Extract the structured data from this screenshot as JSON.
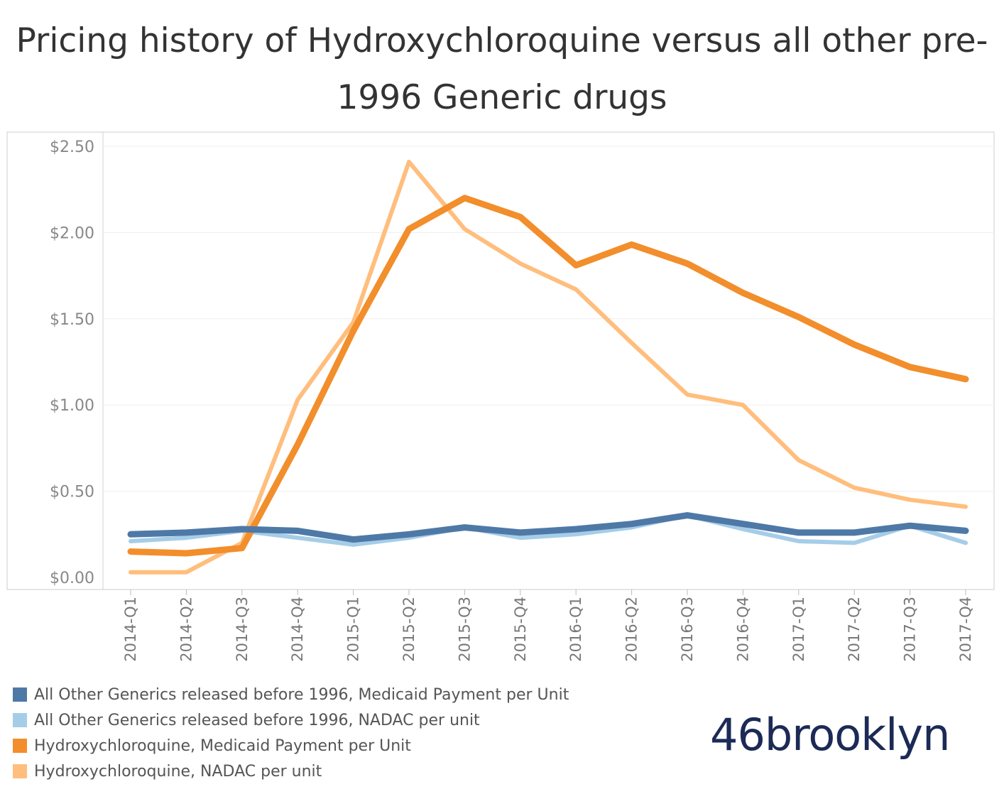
{
  "chart_data": {
    "type": "line",
    "title": "Pricing history of Hydroxychloroquine versus all other pre-1996 Generic drugs",
    "categories": [
      "2014-Q1",
      "2014-Q2",
      "2014-Q3",
      "2014-Q4",
      "2015-Q1",
      "2015-Q2",
      "2015-Q3",
      "2015-Q4",
      "2016-Q1",
      "2016-Q2",
      "2016-Q3",
      "2016-Q4",
      "2017-Q1",
      "2017-Q2",
      "2017-Q3",
      "2017-Q4"
    ],
    "ylim": [
      0,
      2.5
    ],
    "yticks": [
      "$0.00",
      "$0.50",
      "$1.00",
      "$1.50",
      "$2.00",
      "$2.50"
    ],
    "ytick_values": [
      0,
      0.5,
      1.0,
      1.5,
      2.0,
      2.5
    ],
    "grid": true,
    "legend_position": "bottom-left",
    "series": [
      {
        "name": "All Other Generics released before 1996, NADAC per unit",
        "color": "#a5cde8",
        "values": [
          0.21,
          0.23,
          0.27,
          0.23,
          0.19,
          0.23,
          0.29,
          0.23,
          0.25,
          0.29,
          0.36,
          0.28,
          0.21,
          0.2,
          0.3,
          0.2
        ]
      },
      {
        "name": "Hydroxychloroquine, NADAC per unit",
        "color": "#ffbe7d",
        "values": [
          0.03,
          0.03,
          0.2,
          1.03,
          1.48,
          2.41,
          2.02,
          1.82,
          1.67,
          1.36,
          1.06,
          1.0,
          0.68,
          0.52,
          0.45,
          0.41
        ]
      },
      {
        "name": "Hydroxychloroquine, Medicaid Payment per Unit",
        "color": "#f28e2b",
        "values": [
          0.15,
          0.14,
          0.17,
          0.77,
          1.43,
          2.02,
          2.2,
          2.09,
          1.81,
          1.93,
          1.82,
          1.65,
          1.51,
          1.35,
          1.22,
          1.15
        ]
      },
      {
        "name": "All Other Generics released before 1996, Medicaid Payment per Unit",
        "color": "#4e79a7",
        "values": [
          0.25,
          0.26,
          0.28,
          0.27,
          0.22,
          0.25,
          0.29,
          0.26,
          0.28,
          0.31,
          0.36,
          0.31,
          0.26,
          0.26,
          0.3,
          0.27
        ]
      }
    ]
  },
  "legend": [
    {
      "label": "All Other Generics released before 1996, Medicaid Payment per Unit",
      "color": "#4e79a7"
    },
    {
      "label": "All Other Generics released before 1996, NADAC per unit",
      "color": "#a5cde8"
    },
    {
      "label": "Hydroxychloroquine, Medicaid Payment per Unit",
      "color": "#f28e2b"
    },
    {
      "label": "Hydroxychloroquine, NADAC per unit",
      "color": "#ffbe7d"
    }
  ],
  "brand": "46brooklyn"
}
